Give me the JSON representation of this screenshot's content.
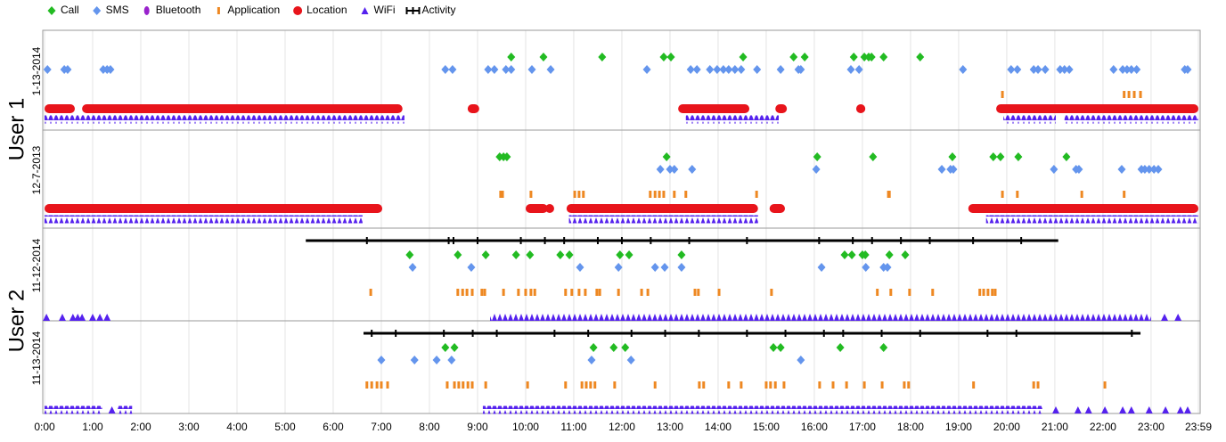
{
  "chart_data": {
    "type": "timeline",
    "legend": [
      {
        "name": "Call",
        "color": "#22bb22",
        "marker": "diamond"
      },
      {
        "name": "SMS",
        "color": "#6495ed",
        "marker": "diamond"
      },
      {
        "name": "Bluetooth",
        "color": "#9922cc",
        "marker": "ellipse"
      },
      {
        "name": "Application",
        "color": "#ee8822",
        "marker": "bar"
      },
      {
        "name": "Location",
        "color": "#e8141b",
        "marker": "circle"
      },
      {
        "name": "WiFi",
        "color": "#5522ee",
        "marker": "triangle"
      },
      {
        "name": "Activity",
        "color": "#000000",
        "marker": "ibeam"
      }
    ],
    "xlim": [
      0,
      23.983
    ],
    "xticks": [
      {
        "value": 0,
        "label": "0:00"
      },
      {
        "value": 1,
        "label": "1:00"
      },
      {
        "value": 2,
        "label": "2:00"
      },
      {
        "value": 3,
        "label": "3:00"
      },
      {
        "value": 4,
        "label": "4:00"
      },
      {
        "value": 5,
        "label": "5:00"
      },
      {
        "value": 6,
        "label": "6:00"
      },
      {
        "value": 7,
        "label": "7:00"
      },
      {
        "value": 8,
        "label": "8:00"
      },
      {
        "value": 9,
        "label": "9:00"
      },
      {
        "value": 10,
        "label": "10:00"
      },
      {
        "value": 11,
        "label": "11:00"
      },
      {
        "value": 12,
        "label": "12:00"
      },
      {
        "value": 13,
        "label": "13:00"
      },
      {
        "value": 14,
        "label": "14:00"
      },
      {
        "value": 15,
        "label": "15:00"
      },
      {
        "value": 16,
        "label": "16:00"
      },
      {
        "value": 17,
        "label": "17:00"
      },
      {
        "value": 18,
        "label": "18:00"
      },
      {
        "value": 19,
        "label": "19:00"
      },
      {
        "value": 20,
        "label": "20:00"
      },
      {
        "value": 21,
        "label": "21:00"
      },
      {
        "value": 22,
        "label": "22:00"
      },
      {
        "value": 23,
        "label": "23:00"
      },
      {
        "value": 23.983,
        "label": "23:59"
      }
    ],
    "grid": true,
    "users": [
      {
        "name": "User 1",
        "days": [
          {
            "date": "1-13-2014",
            "series": [
              {
                "values": [
                  9.7,
                  10.37,
                  11.59,
                  12.87,
                  13.02,
                  14.52,
                  15.57,
                  15.8,
                  16.82,
                  17.04,
                  17.13,
                  17.19,
                  17.44,
                  18.2
                ],
                "spans": []
              },
              {
                "values": [
                  0.06,
                  0.41,
                  0.48,
                  1.22,
                  1.3,
                  1.37,
                  8.33,
                  8.48,
                  9.22,
                  9.35,
                  9.59,
                  9.7,
                  10.13,
                  10.52,
                  12.52,
                  13.43,
                  13.56,
                  13.83,
                  13.98,
                  14.11,
                  14.22,
                  14.35,
                  14.48,
                  14.81,
                  15.3,
                  15.67,
                  15.72,
                  16.76,
                  16.93,
                  19.09,
                  20.09,
                  20.22,
                  20.56,
                  20.65,
                  20.8,
                  21.11,
                  21.2,
                  21.3,
                  22.22,
                  22.41,
                  22.5,
                  22.59,
                  22.7,
                  23.7,
                  23.76
                ],
                "spans": []
              },
              {
                "values": [],
                "spans": []
              },
              {
                "values": [
                  19.91,
                  22.44,
                  22.54,
                  22.65,
                  22.78
                ],
                "spans": []
              },
              {
                "values": [],
                "spans": [
                  [
                    0,
                    0.63
                  ],
                  [
                    0.78,
                    7.44
                  ],
                  [
                    8.85,
                    8.98
                  ],
                  [
                    13.17,
                    14.65
                  ],
                  [
                    15.19,
                    15.43
                  ],
                  [
                    16.87,
                    17.06
                  ],
                  [
                    19.78,
                    23.983
                  ]
                ]
              },
              {
                "values": [],
                "spans": [
                  [
                    0,
                    7.48
                  ],
                  [
                    13.33,
                    15.26
                  ],
                  [
                    19.93,
                    21.02
                  ],
                  [
                    21.2,
                    23.983
                  ]
                ]
              },
              {
                "values": [],
                "spans": []
              }
            ]
          },
          {
            "date": "12-7-2013",
            "series": [
              {
                "values": [
                  9.46,
                  9.54,
                  9.61,
                  12.93,
                  16.06,
                  17.22,
                  18.87,
                  19.72,
                  19.87,
                  20.24,
                  21.24
                ],
                "spans": []
              },
              {
                "values": [
                  12.8,
                  13.0,
                  13.09,
                  13.46,
                  16.04,
                  18.65,
                  18.83,
                  18.89,
                  20.98,
                  21.44,
                  21.5,
                  22.39,
                  22.8,
                  22.87,
                  22.96,
                  23.06,
                  23.15
                ],
                "spans": []
              },
              {
                "values": [],
                "spans": []
              },
              {
                "values": [
                  9.48,
                  9.52,
                  10.11,
                  11.02,
                  11.11,
                  11.2,
                  12.59,
                  12.69,
                  12.78,
                  12.87,
                  13.09,
                  13.33,
                  14.8,
                  17.54,
                  17.56,
                  19.91,
                  20.22,
                  21.56,
                  22.44
                ],
                "spans": []
              },
              {
                "values": [
                  10.5
                ],
                "spans": [
                  [
                    0,
                    7.02
                  ],
                  [
                    10.0,
                    10.46
                  ],
                  [
                    10.85,
                    14.83
                  ],
                  [
                    15.07,
                    15.39
                  ],
                  [
                    19.2,
                    23.983
                  ]
                ]
              },
              {
                "values": [],
                "spans": [
                  [
                    0,
                    6.61
                  ],
                  [
                    10.9,
                    14.83
                  ],
                  [
                    19.57,
                    23.983
                  ]
                ]
              },
              {
                "values": [],
                "spans": []
              }
            ]
          }
        ]
      },
      {
        "name": "User 2",
        "days": [
          {
            "date": "11-12-2014",
            "series": [
              {
                "values": [
                  7.59,
                  8.59,
                  9.17,
                  9.8,
                  10.09,
                  10.72,
                  10.91,
                  11.96,
                  12.15,
                  13.24,
                  16.63,
                  16.78,
                  17.0,
                  17.06,
                  17.56,
                  17.89
                ],
                "spans": []
              },
              {
                "values": [
                  7.65,
                  8.87,
                  11.13,
                  11.93,
                  12.69,
                  12.89,
                  13.24,
                  16.15,
                  17.07,
                  17.44,
                  17.52
                ],
                "spans": []
              },
              {
                "values": [],
                "spans": []
              },
              {
                "values": [
                  6.78,
                  8.59,
                  8.69,
                  8.78,
                  8.89,
                  9.09,
                  9.15,
                  9.54,
                  9.85,
                  10.0,
                  10.11,
                  10.19,
                  10.83,
                  10.96,
                  11.11,
                  11.24,
                  11.48,
                  11.54,
                  11.93,
                  12.41,
                  12.54,
                  13.52,
                  13.59,
                  14.02,
                  15.11,
                  17.31,
                  17.59,
                  17.98,
                  18.46,
                  19.44,
                  19.52,
                  19.61,
                  19.7,
                  19.76
                ],
                "spans": []
              },
              {
                "values": [],
                "spans": []
              },
              {
                "values": [
                  0.04,
                  0.37,
                  0.59,
                  0.69,
                  0.78,
                  1.0,
                  1.15,
                  1.3,
                  23.28,
                  23.56
                ],
                "spans": [
                  [
                    9.26,
                    23.0
                  ]
                ]
              },
              {
                "values": [
                  6.7,
                  8.4,
                  8.5,
                  9.0,
                  9.9,
                  10.4,
                  10.8,
                  11.5,
                  12.0,
                  12.6,
                  13.4,
                  14.6,
                  16.1,
                  16.8,
                  17.2,
                  17.8,
                  18.4,
                  19.3,
                  20.3
                ],
                "spans": [
                  [
                    5.43,
                    21.07
                  ]
                ]
              }
            ]
          },
          {
            "date": "11-13-2014",
            "series": [
              {
                "values": [
                  8.33,
                  8.52,
                  11.41,
                  11.83,
                  12.07,
                  15.15,
                  15.3,
                  16.54,
                  17.44
                ],
                "spans": []
              },
              {
                "values": [
                  7.0,
                  7.69,
                  8.15,
                  8.46,
                  11.37,
                  12.19,
                  15.72
                ],
                "spans": []
              },
              {
                "values": [],
                "spans": []
              },
              {
                "values": [
                  6.7,
                  6.8,
                  6.91,
                  7.0,
                  7.13,
                  8.37,
                  8.52,
                  8.61,
                  8.7,
                  8.8,
                  8.89,
                  9.17,
                  10.04,
                  10.83,
                  11.17,
                  11.26,
                  11.35,
                  11.44,
                  11.85,
                  12.69,
                  13.61,
                  13.7,
                  14.22,
                  14.48,
                  15.0,
                  15.09,
                  15.19,
                  15.37,
                  16.11,
                  16.39,
                  16.67,
                  17.04,
                  17.41,
                  17.87,
                  17.96,
                  19.31,
                  20.56,
                  20.65,
                  22.04
                ],
                "spans": []
              },
              {
                "values": [],
                "spans": []
              },
              {
                "values": [
                  1.4,
                  21.02,
                  21.48,
                  21.7,
                  22.04,
                  22.41,
                  22.59,
                  22.96,
                  23.3,
                  23.61,
                  23.76
                ],
                "spans": [
                  [
                    0,
                    1.2
                  ],
                  [
                    1.52,
                    1.82
                  ],
                  [
                    9.11,
                    20.74
                  ]
                ]
              },
              {
                "values": [
                  6.8,
                  7.3,
                  8.3,
                  8.9,
                  9.4,
                  10.6,
                  11.3,
                  12.2,
                  12.9,
                  13.6,
                  14.6,
                  15.4,
                  16.2,
                  16.6,
                  17.4,
                  18.2,
                  19.6,
                  20.2,
                  22.6
                ],
                "spans": [
                  [
                    6.63,
                    22.78
                  ]
                ]
              }
            ]
          }
        ]
      }
    ]
  }
}
